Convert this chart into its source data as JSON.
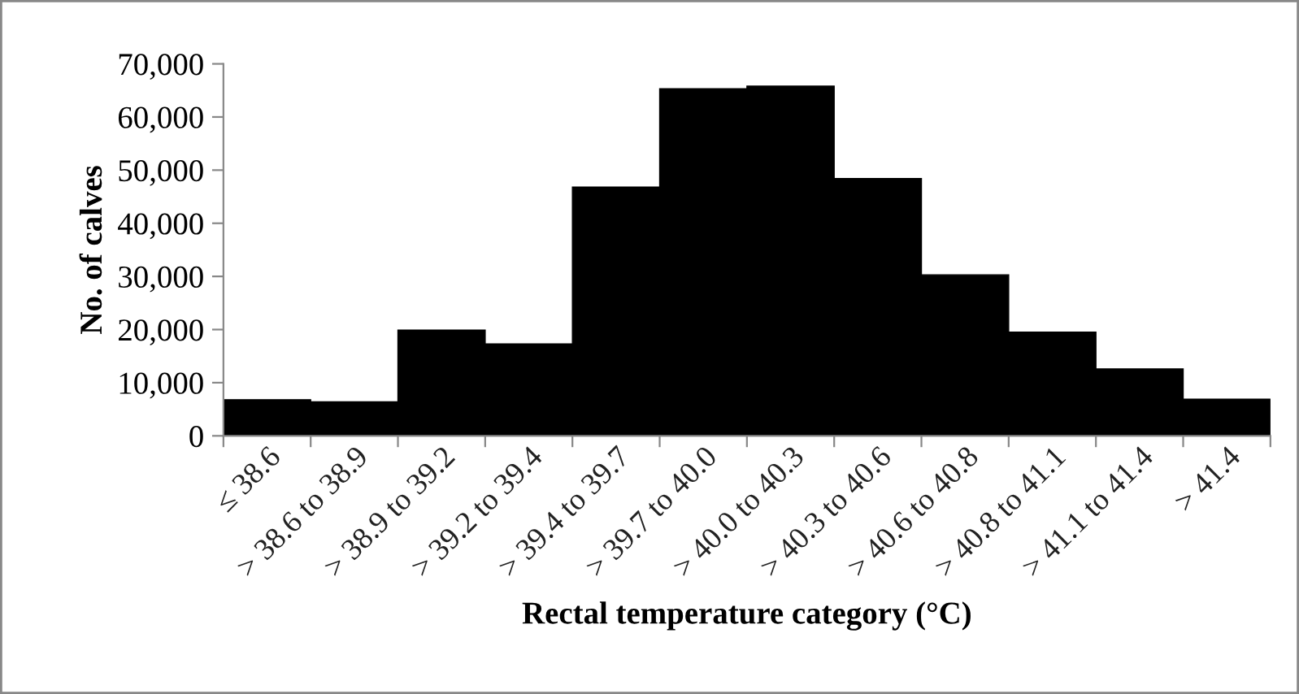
{
  "chart_data": {
    "type": "bar",
    "xlabel": "Rectal temperature category (°C)",
    "ylabel": "No. of calves",
    "categories": [
      "≤ 38.6",
      "> 38.6 to 38.9",
      "> 38.9 to 39.2",
      "> 39.2 to 39.4",
      "> 39.4 to 39.7",
      "> 39.7 to 40.0",
      "> 40.0 to 40.3",
      "> 40.3 to 40.6",
      "> 40.6 to 40.8",
      "> 40.8 to 41.1",
      "> 41.1 to 41.4",
      "> 41.4"
    ],
    "values": [
      6800,
      6400,
      19900,
      17300,
      46800,
      65300,
      65800,
      48400,
      30300,
      19500,
      12600,
      6900
    ],
    "color": "#000000",
    "ylim": [
      0,
      70000
    ],
    "yticks": [
      {
        "value": 0,
        "label": "0"
      },
      {
        "value": 10000,
        "label": "10,000"
      },
      {
        "value": 20000,
        "label": "20,000"
      },
      {
        "value": 30000,
        "label": "30,000"
      },
      {
        "value": 40000,
        "label": "40,000"
      },
      {
        "value": 50000,
        "label": "50,000"
      },
      {
        "value": 60000,
        "label": "60,000"
      },
      {
        "value": 70000,
        "label": "70,000"
      }
    ],
    "grid": false,
    "legend": false
  }
}
